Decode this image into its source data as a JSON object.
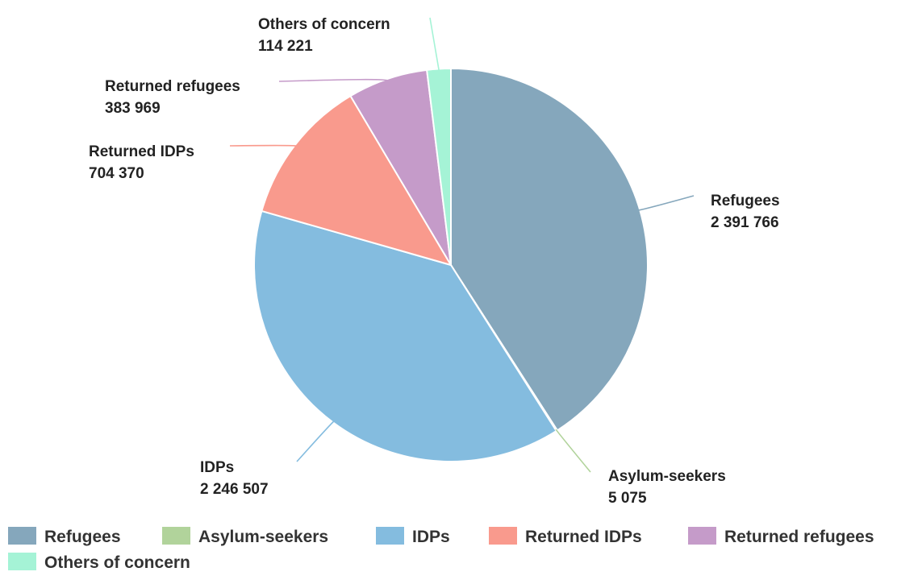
{
  "chart_data": {
    "type": "pie",
    "title": "",
    "legend_position": "bottom",
    "slices": [
      {
        "name": "Refugees",
        "value": 2391766,
        "value_label": "2 391 766",
        "color": "#85a7bc"
      },
      {
        "name": "Asylum-seekers",
        "value": 5075,
        "value_label": "5 075",
        "color": "#b1d39b"
      },
      {
        "name": "IDPs",
        "value": 2246507,
        "value_label": "2 246 507",
        "color": "#84bcdf"
      },
      {
        "name": "Returned IDPs",
        "value": 704370,
        "value_label": "704 370",
        "color": "#f99a8d"
      },
      {
        "name": "Returned refugees",
        "value": 383969,
        "value_label": "383 969",
        "color": "#c59bc9"
      },
      {
        "name": "Others of concern",
        "value": 114221,
        "value_label": "114 221",
        "color": "#a5f3d6"
      }
    ]
  }
}
